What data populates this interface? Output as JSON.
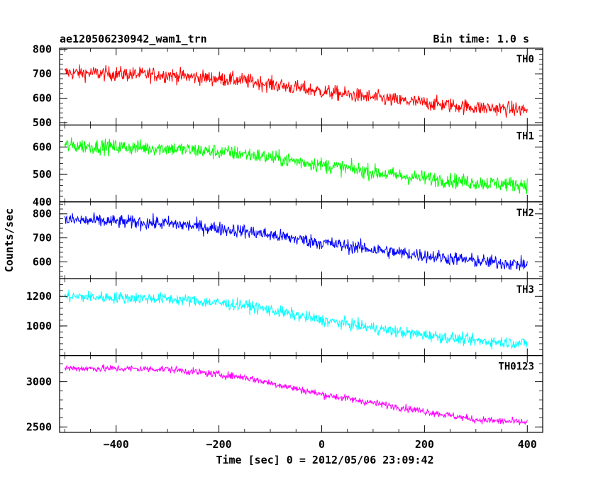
{
  "header": {
    "title": "ae120506230942_wam1_trn",
    "bin_time": "Bin time: 1.0 s"
  },
  "chart_data": {
    "type": "line",
    "xlabel": "Time [sec] 0 = 2012/05/06 23:09:42",
    "ylabel": "Counts/sec",
    "xlim": [
      -510,
      430
    ],
    "x_range": [
      -500,
      400
    ],
    "x_ticks": [
      -400,
      -200,
      0,
      200,
      400
    ],
    "x_tick_labels": [
      "−400",
      "−200",
      "0",
      "200",
      "400"
    ],
    "panels": [
      {
        "name": "TH0",
        "color": "#ff0000",
        "ylim": [
          490,
          805
        ],
        "y_ticks": [
          500,
          600,
          700,
          800
        ],
        "y_tick_labels": [
          "500",
          "600",
          "700",
          "800"
        ],
        "trend": [
          [
            -500,
            705
          ],
          [
            -300,
            695
          ],
          [
            -150,
            672
          ],
          [
            0,
            628
          ],
          [
            150,
            590
          ],
          [
            300,
            562
          ],
          [
            400,
            552
          ]
        ],
        "noise_amplitude": 42
      },
      {
        "name": "TH1",
        "color": "#00ff00",
        "ylim": [
          400,
          680
        ],
        "y_ticks": [
          400,
          500,
          600
        ],
        "y_tick_labels": [
          "400",
          "500",
          "600"
        ],
        "trend": [
          [
            -500,
            605
          ],
          [
            -300,
            595
          ],
          [
            -150,
            575
          ],
          [
            0,
            535
          ],
          [
            150,
            495
          ],
          [
            300,
            470
          ],
          [
            400,
            462
          ]
        ],
        "noise_amplitude": 38
      },
      {
        "name": "TH2",
        "color": "#0000ff",
        "ylim": [
          530,
          850
        ],
        "y_ticks": [
          600,
          700,
          800
        ],
        "y_tick_labels": [
          "600",
          "700",
          "800"
        ],
        "trend": [
          [
            -500,
            775
          ],
          [
            -300,
            760
          ],
          [
            -150,
            728
          ],
          [
            0,
            680
          ],
          [
            150,
            638
          ],
          [
            300,
            604
          ],
          [
            400,
            588
          ]
        ],
        "noise_amplitude": 40
      },
      {
        "name": "TH3",
        "color": "#00ffff",
        "ylim": [
          800,
          1320
        ],
        "y_ticks": [
          1000,
          1200
        ],
        "y_tick_labels": [
          "1000",
          "1200"
        ],
        "trend": [
          [
            -500,
            1200
          ],
          [
            -300,
            1185
          ],
          [
            -150,
            1140
          ],
          [
            0,
            1040
          ],
          [
            150,
            960
          ],
          [
            300,
            900
          ],
          [
            400,
            882
          ]
        ],
        "noise_amplitude": 55
      },
      {
        "name": "TH0123",
        "color": "#ff00ff",
        "ylim": [
          2440,
          3290
        ],
        "y_ticks": [
          2500,
          3000
        ],
        "y_tick_labels": [
          "2500",
          "3000"
        ],
        "trend": [
          [
            -500,
            3150
          ],
          [
            -300,
            3140
          ],
          [
            -150,
            3050
          ],
          [
            0,
            2860
          ],
          [
            150,
            2720
          ],
          [
            300,
            2580
          ],
          [
            400,
            2550
          ]
        ],
        "noise_amplitude": 55
      }
    ]
  }
}
